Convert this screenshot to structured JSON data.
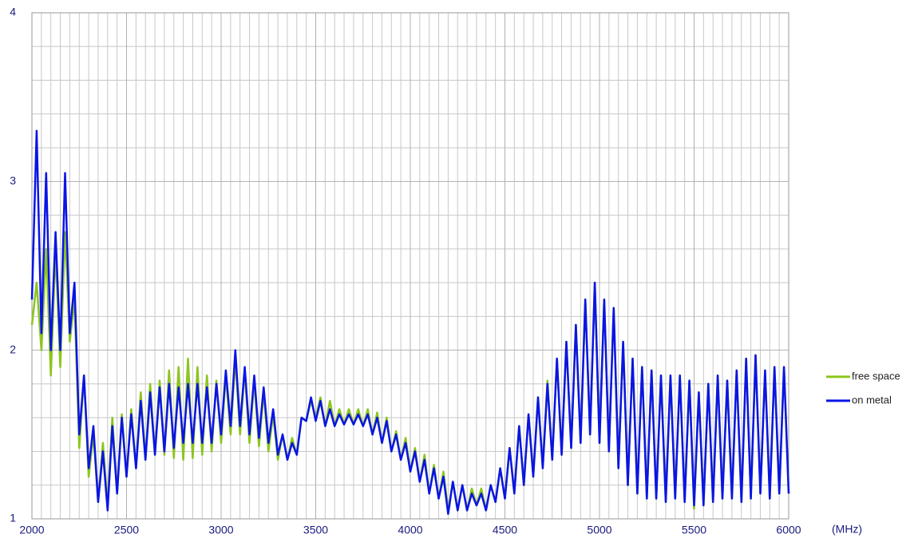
{
  "chart_data": {
    "type": "line",
    "xlabel": "(MHz)",
    "xlim": [
      2000,
      6000
    ],
    "ylim": [
      1,
      4
    ],
    "xticks": [
      2000,
      2500,
      3000,
      3500,
      4000,
      4500,
      5000,
      5500,
      6000
    ],
    "yticks": [
      1,
      2,
      3,
      4
    ],
    "xminorticks": [
      2050,
      2100,
      2150,
      2200,
      2250,
      2300,
      2350,
      2400,
      2450,
      2550,
      2600,
      2650,
      2700,
      2750,
      2800,
      2850,
      2900,
      2950,
      3050,
      3100,
      3150,
      3200,
      3250,
      3300,
      3350,
      3400,
      3450,
      3550,
      3600,
      3650,
      3700,
      3750,
      3800,
      3850,
      3900,
      3950,
      4050,
      4100,
      4150,
      4200,
      4250,
      4300,
      4350,
      4400,
      4450,
      4550,
      4600,
      4650,
      4700,
      4750,
      4800,
      4850,
      4900,
      4950,
      5050,
      5100,
      5150,
      5200,
      5250,
      5300,
      5350,
      5400,
      5450,
      5550,
      5600,
      5650,
      5700,
      5750,
      5800,
      5850,
      5900,
      5950
    ],
    "yminorticks": [
      1.2,
      1.4,
      1.6,
      1.8,
      2.2,
      2.4,
      2.6,
      2.8,
      3.2,
      3.4,
      3.6,
      3.8
    ],
    "grid": true,
    "legend": "right",
    "x": [
      2000,
      2025,
      2050,
      2075,
      2100,
      2125,
      2150,
      2175,
      2200,
      2225,
      2250,
      2275,
      2300,
      2325,
      2350,
      2375,
      2400,
      2425,
      2450,
      2475,
      2500,
      2525,
      2550,
      2575,
      2600,
      2625,
      2650,
      2675,
      2700,
      2725,
      2750,
      2775,
      2800,
      2825,
      2850,
      2875,
      2900,
      2925,
      2950,
      2975,
      3000,
      3025,
      3050,
      3075,
      3100,
      3125,
      3150,
      3175,
      3200,
      3225,
      3250,
      3275,
      3300,
      3325,
      3350,
      3375,
      3400,
      3425,
      3450,
      3475,
      3500,
      3525,
      3550,
      3575,
      3600,
      3625,
      3650,
      3675,
      3700,
      3725,
      3750,
      3775,
      3800,
      3825,
      3850,
      3875,
      3900,
      3925,
      3950,
      3975,
      4000,
      4025,
      4050,
      4075,
      4100,
      4125,
      4150,
      4175,
      4200,
      4225,
      4250,
      4275,
      4300,
      4325,
      4350,
      4375,
      4400,
      4425,
      4450,
      4475,
      4500,
      4525,
      4550,
      4575,
      4600,
      4625,
      4650,
      4675,
      4700,
      4725,
      4750,
      4775,
      4800,
      4825,
      4850,
      4875,
      4900,
      4925,
      4950,
      4975,
      5000,
      5025,
      5050,
      5075,
      5100,
      5125,
      5150,
      5175,
      5200,
      5225,
      5250,
      5275,
      5300,
      5325,
      5350,
      5375,
      5400,
      5425,
      5450,
      5475,
      5500,
      5525,
      5550,
      5575,
      5600,
      5625,
      5650,
      5675,
      5700,
      5725,
      5750,
      5775,
      5800,
      5825,
      5850,
      5875,
      5900,
      5925,
      5950,
      5975,
      6000
    ],
    "series": [
      {
        "name": "free space",
        "color": "#8cc51e",
        "values": [
          2.15,
          2.4,
          2.0,
          2.6,
          1.85,
          2.6,
          1.9,
          2.7,
          2.05,
          2.3,
          1.42,
          1.85,
          1.25,
          1.5,
          1.1,
          1.45,
          1.08,
          1.6,
          1.15,
          1.62,
          1.25,
          1.65,
          1.3,
          1.75,
          1.35,
          1.8,
          1.38,
          1.82,
          1.38,
          1.88,
          1.36,
          1.9,
          1.35,
          1.95,
          1.36,
          1.9,
          1.38,
          1.85,
          1.4,
          1.82,
          1.45,
          1.85,
          1.5,
          1.95,
          1.5,
          1.88,
          1.45,
          1.82,
          1.43,
          1.75,
          1.4,
          1.62,
          1.35,
          1.5,
          1.35,
          1.48,
          1.38,
          1.6,
          1.58,
          1.7,
          1.6,
          1.72,
          1.55,
          1.7,
          1.55,
          1.65,
          1.56,
          1.65,
          1.56,
          1.65,
          1.55,
          1.65,
          1.5,
          1.63,
          1.45,
          1.6,
          1.4,
          1.52,
          1.35,
          1.48,
          1.28,
          1.42,
          1.22,
          1.38,
          1.15,
          1.32,
          1.12,
          1.28,
          1.05,
          1.22,
          1.05,
          1.2,
          1.05,
          1.18,
          1.08,
          1.18,
          1.05,
          1.2,
          1.1,
          1.3,
          1.12,
          1.42,
          1.15,
          1.55,
          1.2,
          1.62,
          1.25,
          1.72,
          1.3,
          1.82,
          1.35,
          1.95,
          1.38,
          2.05,
          1.42,
          2.15,
          1.45,
          2.3,
          1.5,
          2.4,
          1.45,
          2.3,
          1.4,
          2.25,
          1.3,
          2.05,
          1.2,
          1.95,
          1.15,
          1.9,
          1.12,
          1.88,
          1.12,
          1.85,
          1.1,
          1.85,
          1.12,
          1.85,
          1.1,
          1.82,
          1.06,
          1.75,
          1.08,
          1.8,
          1.1,
          1.85,
          1.12,
          1.82,
          1.12,
          1.88,
          1.1,
          1.95,
          1.12,
          1.97,
          1.15,
          1.88,
          1.12,
          1.9,
          1.15,
          1.9,
          1.15
        ]
      },
      {
        "name": "on metal",
        "color": "#0a14e6",
        "values": [
          2.3,
          3.3,
          2.1,
          3.05,
          2.0,
          2.7,
          2.0,
          3.05,
          2.1,
          2.4,
          1.5,
          1.85,
          1.3,
          1.55,
          1.1,
          1.4,
          1.05,
          1.55,
          1.15,
          1.6,
          1.25,
          1.62,
          1.3,
          1.7,
          1.35,
          1.75,
          1.38,
          1.78,
          1.4,
          1.8,
          1.42,
          1.78,
          1.45,
          1.8,
          1.45,
          1.8,
          1.45,
          1.78,
          1.45,
          1.8,
          1.5,
          1.88,
          1.55,
          2.0,
          1.55,
          1.9,
          1.5,
          1.85,
          1.48,
          1.78,
          1.45,
          1.65,
          1.38,
          1.5,
          1.35,
          1.45,
          1.38,
          1.6,
          1.58,
          1.72,
          1.58,
          1.7,
          1.55,
          1.65,
          1.55,
          1.62,
          1.56,
          1.62,
          1.56,
          1.62,
          1.55,
          1.62,
          1.5,
          1.6,
          1.45,
          1.58,
          1.4,
          1.5,
          1.35,
          1.45,
          1.28,
          1.4,
          1.22,
          1.35,
          1.15,
          1.3,
          1.12,
          1.25,
          1.03,
          1.22,
          1.05,
          1.2,
          1.05,
          1.15,
          1.08,
          1.15,
          1.05,
          1.2,
          1.1,
          1.3,
          1.12,
          1.42,
          1.15,
          1.55,
          1.2,
          1.62,
          1.25,
          1.72,
          1.3,
          1.8,
          1.35,
          1.95,
          1.38,
          2.05,
          1.42,
          2.15,
          1.45,
          2.3,
          1.5,
          2.4,
          1.45,
          2.3,
          1.4,
          2.25,
          1.3,
          2.05,
          1.2,
          1.95,
          1.15,
          1.9,
          1.12,
          1.88,
          1.12,
          1.85,
          1.1,
          1.85,
          1.12,
          1.85,
          1.1,
          1.82,
          1.08,
          1.75,
          1.08,
          1.8,
          1.1,
          1.85,
          1.12,
          1.82,
          1.12,
          1.88,
          1.1,
          1.95,
          1.12,
          1.97,
          1.15,
          1.88,
          1.12,
          1.9,
          1.15,
          1.9,
          1.15
        ]
      }
    ]
  }
}
